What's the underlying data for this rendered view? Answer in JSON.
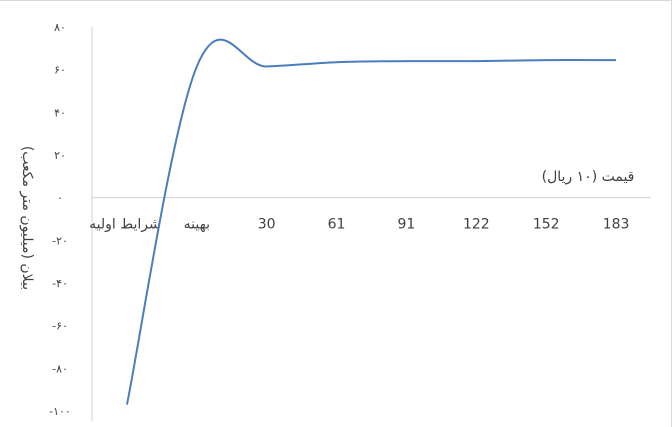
{
  "chart_data": {
    "type": "line",
    "title": "",
    "xlabel": "قیمت (۱۰ ریال)",
    "ylabel": "بیلان (میلیون متر مکعب)",
    "categories": [
      "شرایط اولیه",
      "بهینه",
      "30",
      "61",
      "91",
      "122",
      "152",
      "183"
    ],
    "y_tick_labels": [
      "۸۰",
      "۶۰",
      "۴۰",
      "۲۰",
      "۰",
      "-۲۰",
      "-۴۰",
      "-۶۰",
      "-۸۰",
      "-۱۰۰"
    ],
    "ylim": [
      -100,
      80
    ],
    "grid": false,
    "legend": "none",
    "series": [
      {
        "values": [
          -97,
          61.5,
          61.5,
          63.5,
          64,
          64,
          64.5,
          64.5
        ],
        "color": "#4a7ebb"
      }
    ]
  }
}
